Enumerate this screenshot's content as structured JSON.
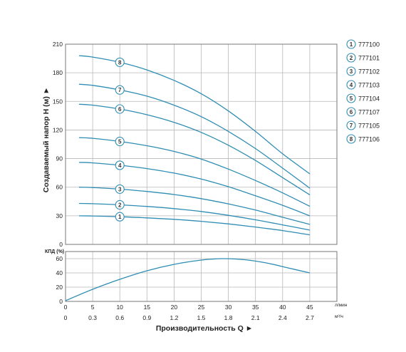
{
  "chart_data": [
    {
      "type": "line",
      "ylabel": "Создаваемый напор H (м)",
      "ylim": [
        0,
        210
      ],
      "yticks": [
        "0",
        "30",
        "60",
        "90",
        "120",
        "150",
        "180",
        "210"
      ],
      "xlim": [
        0,
        50
      ],
      "xticks": [
        "0",
        "5",
        "10",
        "15",
        "20",
        "25",
        "30",
        "35",
        "40",
        "45"
      ],
      "x": [
        2.5,
        5,
        10,
        15,
        20,
        25,
        30,
        35,
        40,
        45
      ],
      "grid": true,
      "series": [
        {
          "name": "777100",
          "marker": "1",
          "values": [
            30,
            29.8,
            29,
            27.8,
            26.3,
            24.2,
            21.5,
            18.2,
            14.5,
            10
          ]
        },
        {
          "name": "777101",
          "marker": "2",
          "values": [
            43,
            42.7,
            41.5,
            39.8,
            37.5,
            34.5,
            30.5,
            25.8,
            20.5,
            15
          ]
        },
        {
          "name": "777102",
          "marker": "3",
          "values": [
            60,
            59.6,
            58,
            55.5,
            52.3,
            48,
            42.5,
            36,
            28.5,
            21
          ]
        },
        {
          "name": "777103",
          "marker": "4",
          "values": [
            86,
            85.5,
            83,
            79.5,
            74.8,
            68.5,
            60.5,
            51,
            41,
            30
          ]
        },
        {
          "name": "777104",
          "marker": "5",
          "values": [
            112,
            111.3,
            108,
            103.5,
            97.5,
            89.5,
            79,
            67,
            54,
            40
          ]
        },
        {
          "name": "777107",
          "marker": "6",
          "values": [
            147,
            146,
            142,
            136,
            128,
            117.5,
            104,
            88,
            70,
            52
          ]
        },
        {
          "name": "777105",
          "marker": "7",
          "values": [
            168,
            166.8,
            162,
            155.5,
            146,
            134,
            118.5,
            100.5,
            80,
            59
          ]
        },
        {
          "name": "777106",
          "marker": "8",
          "values": [
            198,
            196.5,
            191,
            183,
            172,
            158,
            140,
            118.5,
            95,
            74
          ]
        }
      ]
    },
    {
      "type": "line",
      "ylabel": "КПД (%)",
      "ylim": [
        0,
        70
      ],
      "yticks": [
        "0",
        "20",
        "40",
        "60"
      ],
      "x": [
        0,
        5,
        10,
        15,
        20,
        25,
        29,
        33,
        37,
        41,
        45
      ],
      "series": [
        {
          "values": [
            1,
            17,
            31,
            43,
            52,
            58,
            60,
            58.5,
            54,
            47,
            40
          ]
        }
      ]
    }
  ],
  "x_axis": {
    "flow_ticks": [
      "0",
      "5",
      "10",
      "15",
      "20",
      "25",
      "30",
      "35",
      "40",
      "45"
    ],
    "flow_unit": "л/мин",
    "volume_ticks": [
      "0",
      "0.3",
      "0.6",
      "0.9",
      "1.2",
      "1.5",
      "1.8",
      "2.1",
      "2.4",
      "2.7"
    ],
    "volume_unit": "м³/ч",
    "title": "Производительность Q ►"
  },
  "y_axis_title": "Создаваемый напор H (м) ►",
  "efficiency_label": "КПД (%)",
  "legend": [
    {
      "number": "1",
      "label": "777100"
    },
    {
      "number": "2",
      "label": "777101"
    },
    {
      "number": "3",
      "label": "777102"
    },
    {
      "number": "4",
      "label": "777103"
    },
    {
      "number": "5",
      "label": "777104"
    },
    {
      "number": "6",
      "label": "777107"
    },
    {
      "number": "7",
      "label": "777105"
    },
    {
      "number": "8",
      "label": "777106"
    }
  ],
  "colors": {
    "curve": "#2f8db3",
    "badge_border": "#2f8db3",
    "grid": "#b8b8b8",
    "text": "#222222"
  }
}
